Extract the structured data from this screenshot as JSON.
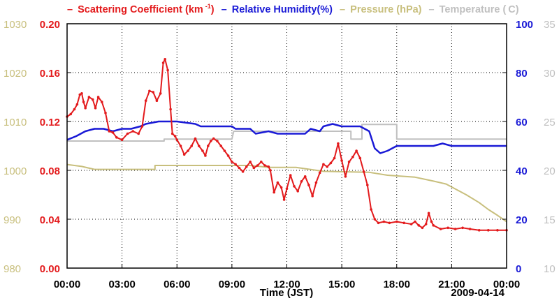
{
  "chart_data": {
    "type": "line",
    "title": "",
    "legend": [
      {
        "key": "scattering",
        "marker": "–",
        "label": "Scattering Coefficient (km",
        "sup": "-1",
        "suffix": ")",
        "color": "#e31a1c"
      },
      {
        "key": "humidity",
        "marker": "–",
        "label": "Relative Humidity(%)",
        "sup": "",
        "suffix": "",
        "color": "#1a1ad6"
      },
      {
        "key": "pressure",
        "marker": "–",
        "label": "Pressure (hPa)",
        "sup": "",
        "suffix": "",
        "color": "#c8bf7d"
      },
      {
        "key": "temperature",
        "marker": "–",
        "label": "Temperature (",
        "sup": "",
        "suffix": "C)",
        "color": "#c0c0c0"
      }
    ],
    "xlabel": "Time (JST)",
    "date_label": "2009-04-14",
    "x_range_hours": [
      0,
      24
    ],
    "x_ticks": [
      "00:00",
      "03:00",
      "06:00",
      "09:00",
      "12:00",
      "15:00",
      "18:00",
      "21:00",
      "00:00"
    ],
    "axes": {
      "scattering": {
        "range": [
          0,
          0.2
        ],
        "ticks": [
          "0.00",
          "0.04",
          "0.08",
          "0.12",
          "0.16",
          "0.20"
        ],
        "color": "#e31a1c"
      },
      "pressure": {
        "range": [
          980,
          1030
        ],
        "ticks": [
          "980",
          "990",
          "1000",
          "1010",
          "1020",
          "1030"
        ],
        "color": "#c8bf7d"
      },
      "humidity": {
        "range": [
          0,
          100
        ],
        "ticks": [
          "0",
          "20",
          "40",
          "60",
          "80",
          "100"
        ],
        "color": "#1a1ad6"
      },
      "temperature": {
        "range": [
          10,
          35
        ],
        "ticks": [
          "10",
          "15",
          "20",
          "25",
          "30",
          "35"
        ],
        "color": "#c0c0c0"
      }
    },
    "grid": true,
    "series": [
      {
        "name": "Scattering Coefficient",
        "axis": "scattering",
        "color": "#e31a1c",
        "markers": true,
        "points": [
          [
            0,
            0.124
          ],
          [
            0.2,
            0.126
          ],
          [
            0.4,
            0.13
          ],
          [
            0.55,
            0.134
          ],
          [
            0.7,
            0.142
          ],
          [
            0.8,
            0.143
          ],
          [
            0.9,
            0.136
          ],
          [
            1.0,
            0.131
          ],
          [
            1.2,
            0.14
          ],
          [
            1.4,
            0.138
          ],
          [
            1.55,
            0.131
          ],
          [
            1.7,
            0.14
          ],
          [
            1.9,
            0.136
          ],
          [
            2.1,
            0.127
          ],
          [
            2.3,
            0.112
          ],
          [
            2.5,
            0.111
          ],
          [
            2.7,
            0.107
          ],
          [
            3.0,
            0.105
          ],
          [
            3.3,
            0.11
          ],
          [
            3.6,
            0.112
          ],
          [
            3.9,
            0.11
          ],
          [
            4.1,
            0.116
          ],
          [
            4.3,
            0.137
          ],
          [
            4.5,
            0.145
          ],
          [
            4.7,
            0.144
          ],
          [
            4.9,
            0.137
          ],
          [
            5.1,
            0.143
          ],
          [
            5.25,
            0.168
          ],
          [
            5.35,
            0.171
          ],
          [
            5.5,
            0.162
          ],
          [
            5.65,
            0.13
          ],
          [
            5.75,
            0.11
          ],
          [
            5.9,
            0.108
          ],
          [
            6.0,
            0.105
          ],
          [
            6.2,
            0.1
          ],
          [
            6.4,
            0.093
          ],
          [
            6.6,
            0.096
          ],
          [
            6.8,
            0.1
          ],
          [
            7.0,
            0.106
          ],
          [
            7.2,
            0.1
          ],
          [
            7.4,
            0.096
          ],
          [
            7.55,
            0.092
          ],
          [
            7.7,
            0.1
          ],
          [
            7.85,
            0.104
          ],
          [
            8.0,
            0.106
          ],
          [
            8.2,
            0.104
          ],
          [
            8.4,
            0.1
          ],
          [
            8.6,
            0.096
          ],
          [
            8.8,
            0.092
          ],
          [
            9.0,
            0.087
          ],
          [
            9.2,
            0.085
          ],
          [
            9.4,
            0.082
          ],
          [
            9.6,
            0.079
          ],
          [
            9.8,
            0.083
          ],
          [
            10.0,
            0.087
          ],
          [
            10.2,
            0.082
          ],
          [
            10.4,
            0.084
          ],
          [
            10.6,
            0.087
          ],
          [
            10.8,
            0.084
          ],
          [
            11.0,
            0.083
          ],
          [
            11.1,
            0.08
          ],
          [
            11.3,
            0.062
          ],
          [
            11.5,
            0.07
          ],
          [
            11.7,
            0.066
          ],
          [
            11.85,
            0.056
          ],
          [
            12.0,
            0.065
          ],
          [
            12.2,
            0.076
          ],
          [
            12.4,
            0.067
          ],
          [
            12.6,
            0.063
          ],
          [
            12.8,
            0.071
          ],
          [
            13.0,
            0.075
          ],
          [
            13.2,
            0.068
          ],
          [
            13.4,
            0.059
          ],
          [
            13.6,
            0.07
          ],
          [
            13.8,
            0.078
          ],
          [
            14.0,
            0.085
          ],
          [
            14.2,
            0.083
          ],
          [
            14.4,
            0.086
          ],
          [
            14.6,
            0.09
          ],
          [
            14.8,
            0.102
          ],
          [
            15.0,
            0.088
          ],
          [
            15.2,
            0.075
          ],
          [
            15.4,
            0.087
          ],
          [
            15.6,
            0.091
          ],
          [
            15.8,
            0.096
          ],
          [
            16.0,
            0.09
          ],
          [
            16.2,
            0.079
          ],
          [
            16.4,
            0.068
          ],
          [
            16.6,
            0.048
          ],
          [
            16.8,
            0.04
          ],
          [
            17.0,
            0.037
          ],
          [
            17.3,
            0.038
          ],
          [
            17.6,
            0.037
          ],
          [
            18.0,
            0.038
          ],
          [
            18.4,
            0.037
          ],
          [
            18.8,
            0.036
          ],
          [
            19.0,
            0.038
          ],
          [
            19.2,
            0.035
          ],
          [
            19.4,
            0.033
          ],
          [
            19.6,
            0.036
          ],
          [
            19.75,
            0.045
          ],
          [
            19.9,
            0.038
          ],
          [
            20.0,
            0.035
          ],
          [
            20.4,
            0.032
          ],
          [
            20.8,
            0.033
          ],
          [
            21.2,
            0.032
          ],
          [
            21.6,
            0.033
          ],
          [
            22.0,
            0.032
          ],
          [
            22.5,
            0.031
          ],
          [
            23.0,
            0.031
          ],
          [
            23.5,
            0.031
          ],
          [
            24.0,
            0.031
          ]
        ]
      },
      {
        "name": "Relative Humidity",
        "axis": "humidity",
        "color": "#1a1ad6",
        "markers": false,
        "points": [
          [
            0,
            52.5
          ],
          [
            0.5,
            54
          ],
          [
            1.0,
            56
          ],
          [
            1.5,
            57
          ],
          [
            2.0,
            57
          ],
          [
            2.5,
            56
          ],
          [
            3.0,
            57
          ],
          [
            3.5,
            57
          ],
          [
            4.0,
            58
          ],
          [
            4.3,
            59
          ],
          [
            5.0,
            60
          ],
          [
            6.0,
            60
          ],
          [
            7.0,
            59
          ],
          [
            7.3,
            58
          ],
          [
            8.0,
            58
          ],
          [
            9.0,
            58
          ],
          [
            9.2,
            57
          ],
          [
            10.0,
            57
          ],
          [
            10.3,
            55
          ],
          [
            11.0,
            56
          ],
          [
            11.5,
            55
          ],
          [
            12.0,
            55
          ],
          [
            13.0,
            55
          ],
          [
            13.3,
            57
          ],
          [
            13.8,
            56
          ],
          [
            14.0,
            58
          ],
          [
            14.5,
            59
          ],
          [
            15.0,
            58
          ],
          [
            16.0,
            58
          ],
          [
            16.5,
            56
          ],
          [
            16.8,
            49
          ],
          [
            17.1,
            47
          ],
          [
            17.5,
            48
          ],
          [
            18.0,
            50
          ],
          [
            19.0,
            50
          ],
          [
            20.0,
            50
          ],
          [
            20.5,
            51
          ],
          [
            21.0,
            50
          ],
          [
            24.0,
            50
          ]
        ]
      },
      {
        "name": "Pressure",
        "axis": "pressure",
        "color": "#c8bf7d",
        "markers": false,
        "points": [
          [
            0,
            1001.2
          ],
          [
            0.8,
            1000.8
          ],
          [
            1.5,
            1000.2
          ],
          [
            3.0,
            1000.2
          ],
          [
            4.8,
            1000.2
          ],
          [
            4.8,
            1001.0
          ],
          [
            6.0,
            1001.0
          ],
          [
            9.0,
            1001.0
          ],
          [
            10.0,
            1001.0
          ],
          [
            11.0,
            1000.6
          ],
          [
            12.5,
            1000.6
          ],
          [
            14.0,
            999.8
          ],
          [
            16.5,
            999.6
          ],
          [
            17.5,
            999.0
          ],
          [
            19.0,
            998.6
          ],
          [
            20.0,
            997.8
          ],
          [
            20.7,
            997.2
          ],
          [
            21.2,
            996.2
          ],
          [
            21.8,
            995.0
          ],
          [
            22.5,
            993.4
          ],
          [
            23.0,
            992.0
          ],
          [
            23.5,
            990.8
          ],
          [
            24.0,
            989.5
          ]
        ]
      },
      {
        "name": "Temperature",
        "axis": "temperature",
        "color": "#c0c0c0",
        "markers": false,
        "points": [
          [
            0,
            23
          ],
          [
            3.0,
            23
          ],
          [
            5.3,
            23
          ],
          [
            5.3,
            23.2
          ],
          [
            6.5,
            23.2
          ],
          [
            9.0,
            23.2
          ],
          [
            9.1,
            24
          ],
          [
            11.0,
            24
          ],
          [
            14.0,
            24
          ],
          [
            15.5,
            24
          ],
          [
            15.5,
            23.2
          ],
          [
            16.1,
            23.2
          ],
          [
            16.1,
            24.7
          ],
          [
            18.0,
            24.7
          ],
          [
            18.0,
            23.2
          ],
          [
            24.0,
            23.2
          ]
        ]
      }
    ]
  }
}
